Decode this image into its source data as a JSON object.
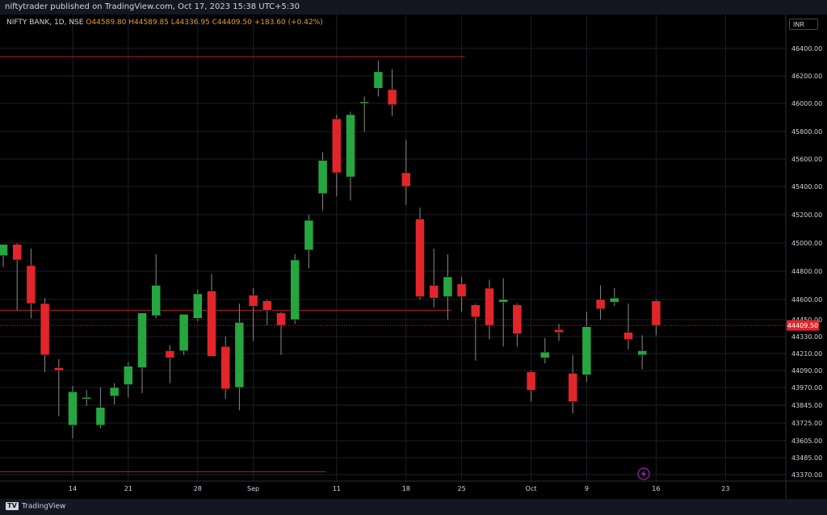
{
  "header": {
    "published": "niftytrader published on TradingView.com, Oct 17, 2023 15:38 UTC+5:30"
  },
  "legend": {
    "symbol": "NIFTY BANK, 1D, NSE",
    "values": "O44589.80 H44589.85 L44336.95 C44409.50 +183.60 (+0.42%)"
  },
  "currency": "INR",
  "last_price_label": "44409.50",
  "footer": {
    "brand": "TradingView"
  },
  "colors": {
    "up": "#26a641",
    "down": "#e0262b",
    "level_line": "#b2222a",
    "background": "#000000"
  },
  "chart_data": {
    "type": "candlestick",
    "ylim": [
      43300,
      46600
    ],
    "yticks": [
      "46400.00",
      "46200.00",
      "46000.00",
      "45800.00",
      "45600.00",
      "45400.00",
      "45200.00",
      "45000.00",
      "44800.00",
      "44600.00",
      "44450.00",
      "44330.00",
      "44210.00",
      "44090.00",
      "43970.00",
      "43845.00",
      "43725.00",
      "43605.00",
      "43485.00",
      "43370.00"
    ],
    "xticks": [
      {
        "label": "14",
        "date": "2023-08-14"
      },
      {
        "label": "21",
        "date": "2023-08-21"
      },
      {
        "label": "28",
        "date": "2023-08-28"
      },
      {
        "label": "Sep",
        "date": "2023-09-01"
      },
      {
        "label": "11",
        "date": "2023-09-11"
      },
      {
        "label": "18",
        "date": "2023-09-18"
      },
      {
        "label": "25",
        "date": "2023-09-25"
      },
      {
        "label": "Oct",
        "date": "2023-10-03"
      },
      {
        "label": "9",
        "date": "2023-10-09"
      },
      {
        "label": "16",
        "date": "2023-10-16"
      },
      {
        "label": "23",
        "date": "2023-10-23"
      }
    ],
    "candles": [
      {
        "d": "2023-08-07",
        "o": 44910,
        "h": 44960,
        "l": 44830,
        "c": 44990
      },
      {
        "d": "2023-08-08",
        "o": 44990,
        "h": 45000,
        "l": 44520,
        "c": 44880
      },
      {
        "d": "2023-08-09",
        "o": 44840,
        "h": 44960,
        "l": 44460,
        "c": 44570
      },
      {
        "d": "2023-08-10",
        "o": 44570,
        "h": 44610,
        "l": 44080,
        "c": 44200
      },
      {
        "d": "2023-08-11",
        "o": 44110,
        "h": 44170,
        "l": 43770,
        "c": 44090
      },
      {
        "d": "2023-08-14",
        "o": 43710,
        "h": 43980,
        "l": 43620,
        "c": 43940
      },
      {
        "d": "2023-08-16",
        "o": 43900,
        "h": 43950,
        "l": 43840,
        "c": 43900
      },
      {
        "d": "2023-08-17",
        "o": 43710,
        "h": 43970,
        "l": 43690,
        "c": 43830
      },
      {
        "d": "2023-08-18",
        "o": 43910,
        "h": 44000,
        "l": 43850,
        "c": 43970
      },
      {
        "d": "2023-08-21",
        "o": 43990,
        "h": 44150,
        "l": 43900,
        "c": 44120
      },
      {
        "d": "2023-08-22",
        "o": 44110,
        "h": 44490,
        "l": 43930,
        "c": 44500
      },
      {
        "d": "2023-08-23",
        "o": 44480,
        "h": 44920,
        "l": 44460,
        "c": 44700
      },
      {
        "d": "2023-08-24",
        "o": 44230,
        "h": 44270,
        "l": 44000,
        "c": 44180
      },
      {
        "d": "2023-08-25",
        "o": 44230,
        "h": 44470,
        "l": 44200,
        "c": 44490
      },
      {
        "d": "2023-08-28",
        "o": 44460,
        "h": 44670,
        "l": 44440,
        "c": 44640
      },
      {
        "d": "2023-08-29",
        "o": 44660,
        "h": 44780,
        "l": 44200,
        "c": 44190
      },
      {
        "d": "2023-08-30",
        "o": 44260,
        "h": 44330,
        "l": 43890,
        "c": 43960
      },
      {
        "d": "2023-08-31",
        "o": 43970,
        "h": 44570,
        "l": 43810,
        "c": 44430
      },
      {
        "d": "2023-09-01",
        "o": 44630,
        "h": 44680,
        "l": 44300,
        "c": 44550
      },
      {
        "d": "2023-09-04",
        "o": 44590,
        "h": 44600,
        "l": 44410,
        "c": 44520
      },
      {
        "d": "2023-09-05",
        "o": 44500,
        "h": 44510,
        "l": 44200,
        "c": 44410
      },
      {
        "d": "2023-09-06",
        "o": 44450,
        "h": 44920,
        "l": 44420,
        "c": 44880
      },
      {
        "d": "2023-09-07",
        "o": 44950,
        "h": 45200,
        "l": 44820,
        "c": 45160
      },
      {
        "d": "2023-09-08",
        "o": 45350,
        "h": 45650,
        "l": 45230,
        "c": 45590
      },
      {
        "d": "2023-09-11",
        "o": 45890,
        "h": 45920,
        "l": 45330,
        "c": 45500
      },
      {
        "d": "2023-09-12",
        "o": 45470,
        "h": 45940,
        "l": 45300,
        "c": 45920
      },
      {
        "d": "2023-09-13",
        "o": 46000,
        "h": 46050,
        "l": 45800,
        "c": 46010
      },
      {
        "d": "2023-09-14",
        "o": 46110,
        "h": 46310,
        "l": 46050,
        "c": 46230
      },
      {
        "d": "2023-09-15",
        "o": 46100,
        "h": 46250,
        "l": 45910,
        "c": 45990
      },
      {
        "d": "2023-09-18",
        "o": 45500,
        "h": 45740,
        "l": 45270,
        "c": 45400
      },
      {
        "d": "2023-09-20",
        "o": 45170,
        "h": 45250,
        "l": 44600,
        "c": 44620
      },
      {
        "d": "2023-09-21",
        "o": 44700,
        "h": 44960,
        "l": 44540,
        "c": 44610
      },
      {
        "d": "2023-09-22",
        "o": 44620,
        "h": 44920,
        "l": 44450,
        "c": 44760
      },
      {
        "d": "2023-09-25",
        "o": 44710,
        "h": 44760,
        "l": 44510,
        "c": 44620
      },
      {
        "d": "2023-09-26",
        "o": 44560,
        "h": 44570,
        "l": 44160,
        "c": 44470
      },
      {
        "d": "2023-09-27",
        "o": 44680,
        "h": 44740,
        "l": 44310,
        "c": 44410
      },
      {
        "d": "2023-09-28",
        "o": 44580,
        "h": 44750,
        "l": 44260,
        "c": 44600
      },
      {
        "d": "2023-09-29",
        "o": 44560,
        "h": 44570,
        "l": 44260,
        "c": 44350
      },
      {
        "d": "2023-10-03",
        "o": 44080,
        "h": 44090,
        "l": 43870,
        "c": 43950
      },
      {
        "d": "2023-10-04",
        "o": 44180,
        "h": 44320,
        "l": 44140,
        "c": 44220
      },
      {
        "d": "2023-10-05",
        "o": 44380,
        "h": 44420,
        "l": 44300,
        "c": 44360
      },
      {
        "d": "2023-10-06",
        "o": 44070,
        "h": 44200,
        "l": 43790,
        "c": 43870
      },
      {
        "d": "2023-10-09",
        "o": 44060,
        "h": 44510,
        "l": 44010,
        "c": 44400
      },
      {
        "d": "2023-10-10",
        "o": 44600,
        "h": 44700,
        "l": 44450,
        "c": 44530
      },
      {
        "d": "2023-10-11",
        "o": 44580,
        "h": 44680,
        "l": 44550,
        "c": 44610
      },
      {
        "d": "2023-10-12",
        "o": 44360,
        "h": 44570,
        "l": 44240,
        "c": 44310
      },
      {
        "d": "2023-10-13",
        "o": 44200,
        "h": 44340,
        "l": 44100,
        "c": 44230
      },
      {
        "d": "2023-10-16",
        "o": 44590,
        "h": 44600,
        "l": 44340,
        "c": 44410
      }
    ],
    "horizontal_lines": [
      {
        "price": 46340,
        "from": "2023-08-07",
        "to": "2023-09-25"
      },
      {
        "price": 44520,
        "from": "2023-08-07",
        "to": "2023-09-22"
      },
      {
        "price": 43390,
        "from": "2023-08-07",
        "to": "2023-09-08"
      }
    ]
  }
}
